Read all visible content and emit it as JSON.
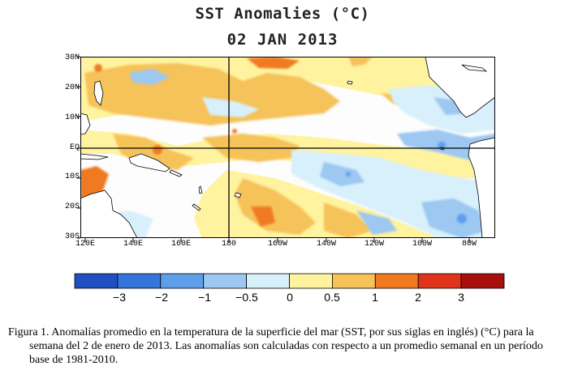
{
  "title": "SST Anomalies (°C)",
  "date": "02 JAN 2013",
  "latitude_labels": [
    "30N",
    "20N",
    "10N",
    "EQ",
    "10S",
    "20S",
    "30S"
  ],
  "longitude_labels": [
    "120E",
    "140E",
    "160E",
    "180",
    "160W",
    "140W",
    "120W",
    "100W",
    "80W"
  ],
  "colorbar": {
    "labels": [
      "−3",
      "−2",
      "−1",
      "−0.5",
      "0",
      "0.5",
      "1",
      "2",
      "3"
    ],
    "colors": [
      "#1f4fc0",
      "#3574d8",
      "#5f9fea",
      "#9cc8f2",
      "#d8f0fb",
      "#fff3a0",
      "#f6c25a",
      "#f07a20",
      "#e0341a",
      "#a81010"
    ]
  },
  "map_colors": {
    "ocean_neutral": "#fdfdfd",
    "land": "#ffffff",
    "warm_light": "#fff3a0",
    "warm_mid": "#f6c25a",
    "warm_strong": "#f07a20",
    "cool_light": "#d8f0fb",
    "cool_mid": "#9cc8f2",
    "cool_strong": "#5f9fea"
  },
  "caption": "Figura 1. Anomalías promedio en la temperatura de la superficie del mar (SST, por sus siglas en inglés) (°C) para la semana del 2 de enero de 2013. Las anomalías son calculadas con respecto a un promedio semanal en un período base de 1981-2010."
}
